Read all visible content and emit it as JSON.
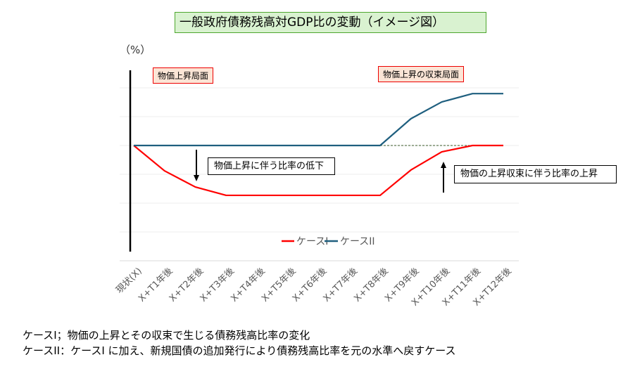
{
  "title": "一般政府債務残高対GDP比の変動（イメージ図）",
  "unit_label": "（%）",
  "annotations": {
    "phase1": "物価上昇局面",
    "phase2": "物価上昇の収束局面",
    "note_down": "物価上昇に伴う比率の低下",
    "note_up": "物価の上昇収束に伴う比率の上昇"
  },
  "footnotes": [
    "ケースI；物価の上昇とその収束で生じる債務残高比率の変化",
    "ケースII：ケースI に加え、新規国債の追加発行により債務残高比率を元の水準へ戻すケース"
  ],
  "colors": {
    "case1": "#ff0000",
    "case2": "#1f5f7f",
    "grid": "#eeeeee"
  },
  "chart_data": {
    "type": "line",
    "title": "一般政府債務残高対GDP比の変動（イメージ図）",
    "ylabel": "（%）",
    "xlabel": "",
    "categories": [
      "現状(X)",
      "X+T1年後",
      "X+T2年後",
      "X+T3年後",
      "X+T4年後",
      "X+T5年後",
      "X+T6年後",
      "X+T7年後",
      "X+T8年後",
      "X+T9年後",
      "X+T10年後",
      "X+T11年後",
      "X+T12年後"
    ],
    "series": [
      {
        "name": "ケースI",
        "values": [
          0,
          -0.88,
          -1.44,
          -1.73,
          -1.73,
          -1.73,
          -1.73,
          -1.73,
          -1.73,
          -0.85,
          -0.22,
          0,
          0
        ]
      },
      {
        "name": "ケースII",
        "values": [
          0,
          0,
          0,
          0,
          0,
          0,
          0,
          0,
          0,
          0.93,
          1.51,
          1.8,
          1.8
        ]
      }
    ],
    "reference_line": {
      "value": 0,
      "from": "X+T8年後",
      "to": "X+T11年後",
      "style": "dashed"
    },
    "ylim": [
      -4,
      2.6
    ],
    "yticks_gridlines": [
      -4,
      -3,
      -2,
      -1,
      0,
      1,
      2
    ],
    "grid": true,
    "legend_position": "bottom"
  }
}
